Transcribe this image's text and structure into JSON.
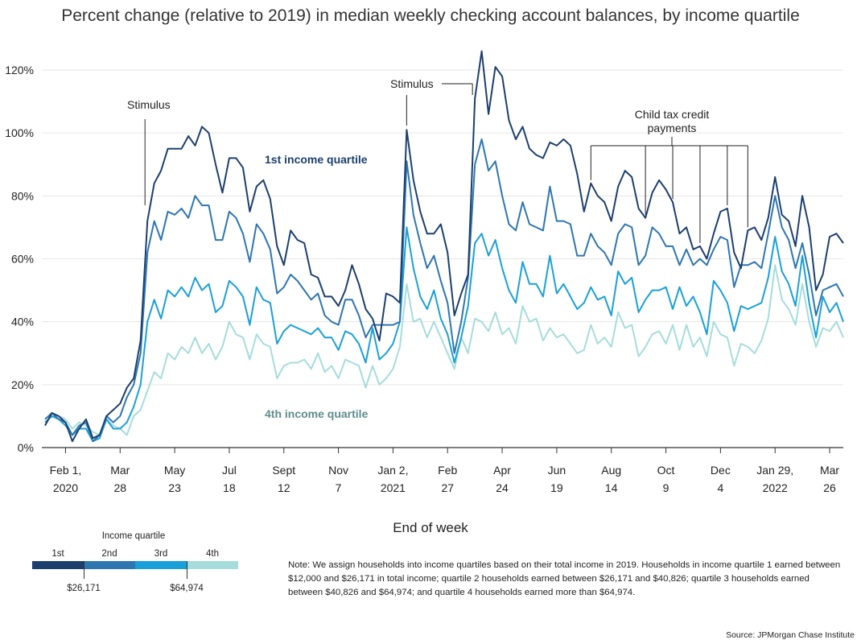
{
  "title": "Percent change (relative to 2019) in median weekly checking account balances, by income quartile",
  "source": "Source: JPMorgan Chase Institute",
  "note": "Note: We assign households into income quartiles based on their total income in 2019. Households in income quartile 1 earned between $12,000 and $26,171 in total income; quartile 2 households earned between $26,171 and $40,826; quartile 3 households earned between $40,826 and $64,974; and quartile 4 households earned more than $64,974.",
  "legend": {
    "title": "Income quartile",
    "labels": [
      "1st",
      "2nd",
      "3rd",
      "4th"
    ],
    "colors": [
      "#1c3f6e",
      "#2d76b0",
      "#1aa0d8",
      "#a6dcdc"
    ],
    "cutoffs": [
      "$26,171",
      "$64,974"
    ]
  },
  "chart_data": {
    "type": "line",
    "title": "Percent change (relative to 2019) in median weekly checking account balances, by income quartile",
    "xlabel": "End of week",
    "ylabel": "",
    "ylim": [
      0,
      120
    ],
    "yticks": [
      "0%",
      "20%",
      "40%",
      "60%",
      "80%",
      "100%",
      "120%"
    ],
    "grid": "horizontal",
    "x_ticks": [
      {
        "l1": "Feb 1,",
        "l2": "2020",
        "week": 3
      },
      {
        "l1": "Mar",
        "l2": "28",
        "week": 11
      },
      {
        "l1": "May",
        "l2": "23",
        "week": 19
      },
      {
        "l1": "Jul",
        "l2": "18",
        "week": 27
      },
      {
        "l1": "Sept",
        "l2": "12",
        "week": 35
      },
      {
        "l1": "Nov",
        "l2": "7",
        "week": 43
      },
      {
        "l1": "Jan 2,",
        "l2": "2021",
        "week": 51
      },
      {
        "l1": "Feb",
        "l2": "27",
        "week": 59
      },
      {
        "l1": "Apr",
        "l2": "24",
        "week": 67
      },
      {
        "l1": "Jun",
        "l2": "19",
        "week": 75
      },
      {
        "l1": "Aug",
        "l2": "14",
        "week": 83
      },
      {
        "l1": "Oct",
        "l2": "9",
        "week": 91
      },
      {
        "l1": "Dec",
        "l2": "4",
        "week": 99
      },
      {
        "l1": "Jan 29,",
        "l2": "2022",
        "week": 107
      },
      {
        "l1": "Mar",
        "l2": "26",
        "week": 115
      }
    ],
    "series": [
      {
        "name": "1st income quartile",
        "color": "#1c3f6e",
        "values": [
          7,
          11,
          10,
          8,
          2,
          6,
          9,
          3,
          4,
          10,
          12,
          14,
          19,
          22,
          34,
          72,
          84,
          88,
          95,
          95,
          95,
          99,
          96,
          102,
          100,
          90,
          81,
          92,
          92,
          89,
          75,
          83,
          85,
          79,
          64,
          58,
          69,
          66,
          65,
          55,
          54,
          48,
          48,
          45,
          50,
          58,
          52,
          44,
          41,
          34,
          49,
          48,
          46,
          101,
          85,
          75,
          68,
          68,
          71,
          62,
          42,
          49,
          55,
          111,
          126,
          106,
          121,
          118,
          104,
          98,
          102,
          95,
          93,
          92,
          97,
          96,
          98,
          96,
          87,
          75,
          84,
          80,
          78,
          72,
          83,
          88,
          86,
          76,
          73,
          81,
          85,
          82,
          78,
          68,
          70,
          63,
          64,
          60,
          68,
          75,
          76,
          62,
          57,
          69,
          70,
          66,
          73,
          86,
          74,
          72,
          64,
          80,
          70,
          50,
          55,
          67,
          68,
          65
        ]
      },
      {
        "name": "2nd",
        "color": "#2d76b0",
        "values": [
          9,
          11,
          9,
          8,
          4,
          7,
          8,
          2,
          4,
          10,
          8,
          10,
          16,
          20,
          30,
          62,
          72,
          66,
          75,
          74,
          76,
          73,
          80,
          77,
          77,
          66,
          66,
          75,
          73,
          68,
          59,
          71,
          68,
          63,
          49,
          51,
          55,
          53,
          50,
          47,
          49,
          42,
          40,
          39,
          47,
          47,
          42,
          35,
          39,
          39,
          39,
          39,
          40,
          91,
          74,
          65,
          57,
          61,
          53,
          46,
          30,
          40,
          54,
          90,
          98,
          88,
          91,
          80,
          71,
          69,
          78,
          71,
          70,
          69,
          83,
          72,
          72,
          71,
          61,
          61,
          68,
          64,
          62,
          58,
          68,
          71,
          70,
          58,
          61,
          70,
          68,
          64,
          64,
          58,
          63,
          58,
          60,
          58,
          63,
          67,
          66,
          51,
          58,
          58,
          59,
          57,
          68,
          80,
          70,
          66,
          57,
          65,
          55,
          42,
          50,
          51,
          52,
          48
        ]
      },
      {
        "name": "3rd",
        "color": "#1aa0d8",
        "values": [
          8,
          10,
          9,
          7,
          4,
          6,
          6,
          2,
          3,
          9,
          6,
          6,
          8,
          13,
          20,
          40,
          47,
          41,
          50,
          48,
          51,
          48,
          54,
          50,
          52,
          43,
          45,
          53,
          51,
          48,
          39,
          51,
          47,
          46,
          33,
          37,
          39,
          38,
          37,
          36,
          38,
          35,
          35,
          31,
          37,
          36,
          33,
          27,
          38,
          28,
          30,
          33,
          40,
          70,
          57,
          48,
          44,
          50,
          41,
          36,
          27,
          35,
          45,
          65,
          68,
          61,
          66,
          57,
          50,
          46,
          59,
          52,
          52,
          48,
          61,
          49,
          52,
          48,
          44,
          46,
          51,
          47,
          48,
          42,
          56,
          52,
          54,
          43,
          47,
          50,
          50,
          51,
          44,
          51,
          45,
          48,
          43,
          36,
          53,
          50,
          46,
          37,
          45,
          44,
          45,
          46,
          54,
          67,
          56,
          52,
          45,
          61,
          46,
          35,
          48,
          43,
          46,
          40
        ]
      },
      {
        "name": "4th income quartile",
        "color": "#a6dcdc",
        "values": [
          9,
          11,
          10,
          9,
          6,
          8,
          7,
          5,
          4,
          9,
          7,
          6,
          4,
          10,
          12,
          18,
          24,
          22,
          30,
          28,
          32,
          30,
          35,
          30,
          33,
          28,
          32,
          40,
          36,
          35,
          28,
          36,
          33,
          32,
          22,
          26,
          27,
          27,
          28,
          25,
          30,
          24,
          26,
          22,
          28,
          27,
          26,
          19,
          26,
          20,
          22,
          25,
          32,
          52,
          40,
          41,
          35,
          40,
          35,
          30,
          25,
          35,
          30,
          41,
          40,
          37,
          43,
          36,
          38,
          33,
          45,
          40,
          41,
          34,
          38,
          35,
          36,
          33,
          30,
          31,
          39,
          33,
          35,
          32,
          43,
          38,
          39,
          29,
          32,
          36,
          37,
          33,
          39,
          31,
          39,
          32,
          35,
          29,
          40,
          36,
          35,
          26,
          33,
          32,
          30,
          34,
          41,
          58,
          47,
          44,
          39,
          52,
          40,
          32,
          38,
          37,
          40,
          35
        ]
      }
    ],
    "series_labels": [
      {
        "text": "1st income quartile",
        "series": 0
      },
      {
        "text": "4th income quartile",
        "series": 3
      }
    ],
    "annotations": {
      "stimulus1": "Stimulus",
      "stimulus2": "Stimulus",
      "ctc_line1": "Child tax credit",
      "ctc_line2": "payments"
    }
  }
}
